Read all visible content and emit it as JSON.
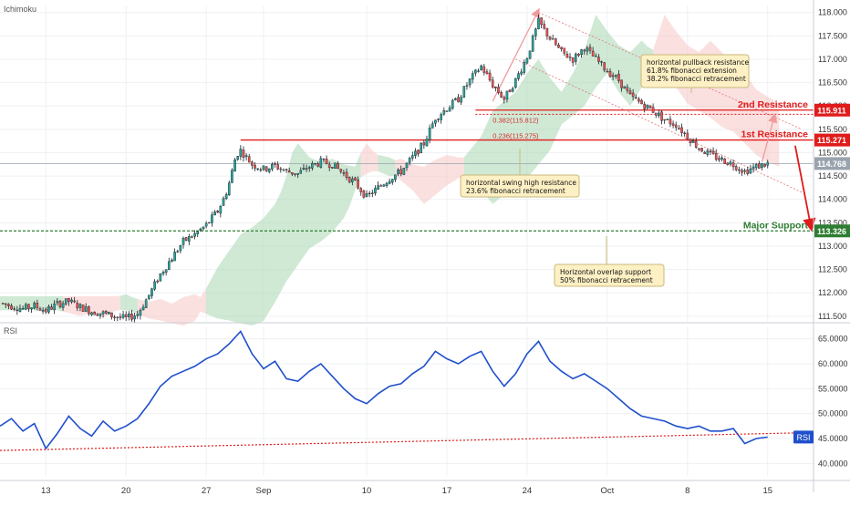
{
  "chart_data": [
    {
      "type": "candlestick",
      "panel": "price",
      "indicator_label": "Ichimoku",
      "ylim": [
        111.4,
        118.15
      ],
      "y_ticks": [
        "111.500",
        "112.000",
        "112.500",
        "113.000",
        "113.500",
        "114.000",
        "114.500",
        "115.000",
        "115.500",
        "116.000",
        "116.500",
        "117.000",
        "117.500",
        "118.000"
      ],
      "x_ticks": [
        "13",
        "20",
        "27",
        "Sep",
        "10",
        "17",
        "24",
        "Oct",
        "8",
        "15"
      ],
      "x_tick_days": [
        13,
        20,
        27,
        32,
        41,
        48,
        55,
        62,
        69,
        76
      ],
      "x_range_days": [
        9,
        80
      ],
      "close_path": [
        [
          9,
          111.78
        ],
        [
          10,
          111.72
        ],
        [
          11,
          111.66
        ],
        [
          12,
          111.72
        ],
        [
          13,
          111.62
        ],
        [
          14,
          111.76
        ],
        [
          15,
          111.82
        ],
        [
          16,
          111.7
        ],
        [
          17,
          111.6
        ],
        [
          18,
          111.56
        ],
        [
          19,
          111.5
        ],
        [
          20,
          111.45
        ],
        [
          21,
          111.55
        ],
        [
          22,
          111.95
        ],
        [
          23,
          112.4
        ],
        [
          24,
          112.75
        ],
        [
          25,
          113.1
        ],
        [
          26,
          113.25
        ],
        [
          27,
          113.45
        ],
        [
          28,
          113.75
        ],
        [
          28.6,
          114.05
        ],
        [
          29,
          114.35
        ],
        [
          29.6,
          114.95
        ],
        [
          30,
          115.05
        ],
        [
          31,
          114.75
        ],
        [
          32,
          114.65
        ],
        [
          33,
          114.72
        ],
        [
          34,
          114.6
        ],
        [
          35,
          114.55
        ],
        [
          36,
          114.7
        ],
        [
          37,
          114.8
        ],
        [
          38,
          114.75
        ],
        [
          39,
          114.55
        ],
        [
          40,
          114.35
        ],
        [
          41,
          114.05
        ],
        [
          42,
          114.25
        ],
        [
          43,
          114.45
        ],
        [
          44,
          114.6
        ],
        [
          45,
          114.9
        ],
        [
          46,
          115.2
        ],
        [
          47,
          115.75
        ],
        [
          48,
          115.95
        ],
        [
          49,
          116.15
        ],
        [
          50,
          116.55
        ],
        [
          51,
          116.85
        ],
        [
          52,
          116.45
        ],
        [
          53,
          116.15
        ],
        [
          54,
          116.55
        ],
        [
          55,
          117.05
        ],
        [
          55.6,
          117.5
        ],
        [
          56,
          117.8
        ],
        [
          57,
          117.45
        ],
        [
          58,
          117.15
        ],
        [
          59,
          117.0
        ],
        [
          60,
          117.25
        ],
        [
          61,
          117.0
        ],
        [
          62,
          116.75
        ],
        [
          63,
          116.55
        ],
        [
          64,
          116.2
        ],
        [
          65,
          116.05
        ],
        [
          66,
          115.9
        ],
        [
          67,
          115.7
        ],
        [
          68,
          115.6
        ],
        [
          69,
          115.35
        ],
        [
          70,
          115.1
        ],
        [
          71,
          114.95
        ],
        [
          72,
          114.85
        ],
        [
          73,
          114.75
        ],
        [
          74,
          114.6
        ],
        [
          75,
          114.7
        ],
        [
          76,
          114.77
        ]
      ],
      "current_price": "114.768",
      "levels": [
        {
          "label": "2nd Resistance",
          "value": "115.911",
          "color": "#e01b1b"
        },
        {
          "label": "1st Resistance",
          "value": "115.271",
          "color": "#e01b1b"
        },
        {
          "label": "Major Support",
          "value": "113.326",
          "color": "#2e7d32"
        }
      ],
      "fib_labels": [
        "0.382(115.812)",
        "0.236(115.275)"
      ],
      "annotations": [
        {
          "lines": [
            "horizontal pullback resistance",
            "61.8% fibonacci extension",
            "38.2% fibonacci retracement"
          ]
        },
        {
          "lines": [
            "horizontal swing high resistance",
            "23.6% fibonacci retracement"
          ]
        },
        {
          "lines": [
            "Horizontal overlap support",
            "50% fibonacci retracement"
          ]
        }
      ],
      "colors": {
        "up": "#26a69a",
        "down": "#ef5350",
        "cloud_green": "#a7d7b3",
        "cloud_red": "#f7c7c7"
      }
    },
    {
      "type": "line",
      "panel": "rsi",
      "indicator_label": "RSI",
      "ylim": [
        37.5,
        67.5
      ],
      "y_ticks": [
        "40.0000",
        "45.0000",
        "50.0000",
        "55.0000",
        "60.0000",
        "65.0000"
      ],
      "current_value_label": "RSI",
      "series": [
        {
          "name": "RSI",
          "color": "#1f4fcc",
          "points": [
            [
              9,
              47.5
            ],
            [
              10,
              49.0
            ],
            [
              11,
              46.5
            ],
            [
              12,
              48.0
            ],
            [
              13,
              43.0
            ],
            [
              14,
              46.0
            ],
            [
              15,
              49.5
            ],
            [
              16,
              47.0
            ],
            [
              17,
              45.5
            ],
            [
              18,
              48.5
            ],
            [
              19,
              46.5
            ],
            [
              20,
              47.5
            ],
            [
              21,
              49.0
            ],
            [
              22,
              52.0
            ],
            [
              23,
              55.5
            ],
            [
              24,
              57.5
            ],
            [
              25,
              58.5
            ],
            [
              26,
              59.5
            ],
            [
              27,
              61.0
            ],
            [
              28,
              62.0
            ],
            [
              29,
              64.0
            ],
            [
              30,
              66.5
            ],
            [
              31,
              62.0
            ],
            [
              32,
              59.0
            ],
            [
              33,
              60.5
            ],
            [
              34,
              57.0
            ],
            [
              35,
              56.5
            ],
            [
              36,
              58.5
            ],
            [
              37,
              60.0
            ],
            [
              38,
              57.5
            ],
            [
              39,
              55.0
            ],
            [
              40,
              53.0
            ],
            [
              41,
              52.0
            ],
            [
              42,
              54.0
            ],
            [
              43,
              55.5
            ],
            [
              44,
              56.0
            ],
            [
              45,
              58.0
            ],
            [
              46,
              59.5
            ],
            [
              47,
              62.5
            ],
            [
              48,
              61.0
            ],
            [
              49,
              60.0
            ],
            [
              50,
              61.5
            ],
            [
              51,
              62.5
            ],
            [
              52,
              58.5
            ],
            [
              53,
              55.5
            ],
            [
              54,
              58.0
            ],
            [
              55,
              62.0
            ],
            [
              56,
              64.5
            ],
            [
              57,
              60.5
            ],
            [
              58,
              58.5
            ],
            [
              59,
              57.0
            ],
            [
              60,
              58.0
            ],
            [
              61,
              56.5
            ],
            [
              62,
              55.0
            ],
            [
              63,
              53.0
            ],
            [
              64,
              51.0
            ],
            [
              65,
              49.5
            ],
            [
              66,
              49.0
            ],
            [
              67,
              48.5
            ],
            [
              68,
              47.5
            ],
            [
              69,
              47.0
            ],
            [
              70,
              47.5
            ],
            [
              71,
              46.5
            ],
            [
              72,
              46.5
            ],
            [
              73,
              47.0
            ],
            [
              74,
              44.0
            ],
            [
              75,
              45.0
            ],
            [
              76,
              45.3
            ]
          ]
        }
      ],
      "trendline": [
        [
          9,
          42.6
        ],
        [
          80,
          46.2
        ]
      ]
    }
  ]
}
